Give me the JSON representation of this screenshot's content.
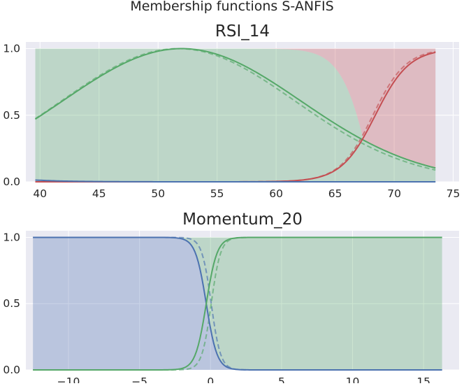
{
  "figure": {
    "suptitle": "Membership functions S-ANFIS"
  },
  "colors": {
    "axes_bg": "#eaeaf2",
    "grid": "#ffffff",
    "low": "#4c72b0",
    "mid": "#55a868",
    "high": "#c44e52"
  },
  "chart_data": [
    {
      "type": "line",
      "title": "RSI_14",
      "xlabel": "",
      "ylabel": "",
      "xlim": [
        38.8,
        75.5
      ],
      "ylim": [
        0.0,
        1.05
      ],
      "xticks": [
        "40",
        "45",
        "50",
        "55",
        "60",
        "65",
        "70",
        "75"
      ],
      "yticks": [
        "0.0",
        "0.5",
        "1.0"
      ],
      "grid": true,
      "legend": "none",
      "x_range": [
        39.6,
        73.5
      ],
      "series": [
        {
          "color_key": "mid",
          "style": "solid",
          "kind": "gaussian",
          "center": 52.0,
          "sigma": 10.1
        },
        {
          "color_key": "mid",
          "style": "dashed",
          "kind": "gaussian",
          "center": 51.7,
          "sigma": 9.9
        },
        {
          "color_key": "high",
          "style": "solid",
          "kind": "sigmoid",
          "center": 68.4,
          "scale": 1.44
        },
        {
          "color_key": "high",
          "style": "dashed",
          "kind": "sigmoid",
          "center": 68.2,
          "scale": 1.4
        },
        {
          "color_key": "low",
          "style": "solid",
          "kind": "sigmoid_dec",
          "center": 28.0,
          "scale": 2.7
        }
      ],
      "fill": [
        {
          "color_key": "mid",
          "from": "green_upper"
        },
        {
          "color_key": "high",
          "from": "red_upper"
        }
      ]
    },
    {
      "type": "line",
      "title": "Momentum_20",
      "xlabel": "",
      "ylabel": "",
      "xlim": [
        -13.0,
        17.5
      ],
      "ylim": [
        0.0,
        1.05
      ],
      "xticks": [
        "−10",
        "−5",
        "0",
        "5",
        "10",
        "15"
      ],
      "yticks": [
        "0.0",
        "0.5",
        "1.0"
      ],
      "grid": true,
      "legend": "none",
      "x_range": [
        -12.5,
        16.3
      ],
      "series": [
        {
          "color_key": "low",
          "style": "solid",
          "kind": "sigmoid_dec",
          "center": -0.3,
          "scale": 0.38
        },
        {
          "color_key": "low",
          "style": "dashed",
          "kind": "sigmoid_dec",
          "center": 0.05,
          "scale": 0.33
        },
        {
          "color_key": "mid",
          "style": "solid",
          "kind": "sigmoid",
          "center": -0.3,
          "scale": 0.38
        },
        {
          "color_key": "mid",
          "style": "dashed",
          "kind": "sigmoid",
          "center": 0.05,
          "scale": 0.33
        }
      ],
      "fill": [
        {
          "color_key": "low",
          "from": "low_region"
        },
        {
          "color_key": "mid",
          "from": "mid_region"
        }
      ]
    }
  ]
}
